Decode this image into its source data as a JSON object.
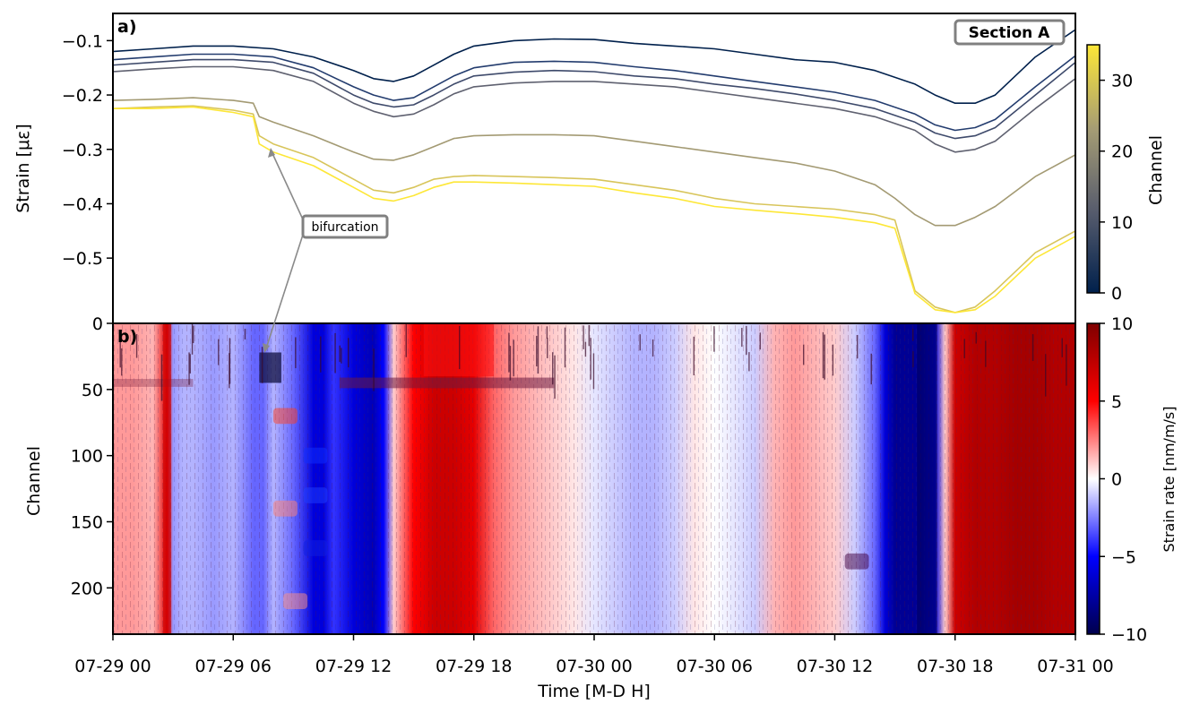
{
  "chart_data": [
    {
      "panel_label": "a)",
      "type": "line",
      "ylabel": "Strain [με]",
      "ylim": [
        -0.62,
        -0.05
      ],
      "yticks": [
        -0.1,
        -0.2,
        -0.3,
        -0.4,
        -0.5
      ],
      "ytick_labels": [
        "−0.1",
        "−0.2",
        "−0.3",
        "−0.4",
        "−0.5"
      ],
      "x_unit": "hours since 07-29 00",
      "xlim": [
        0,
        48
      ],
      "badge": "Section A",
      "annotation": "bifurcation",
      "colorbar": {
        "label": "Channel",
        "range": [
          0,
          35
        ],
        "ticks": [
          0,
          10,
          20,
          30
        ],
        "tick_labels": [
          "0",
          "10",
          "20",
          "30"
        ],
        "colors": [
          "#00204c",
          "#575c6d",
          "#a59c74",
          "#fde737"
        ]
      },
      "series": [
        {
          "channel": 0,
          "color": "#00204c",
          "x": [
            0,
            2,
            4,
            6,
            8,
            10,
            12,
            13,
            14,
            15,
            16,
            17,
            18,
            20,
            22,
            24,
            26,
            28,
            30,
            32,
            34,
            36,
            38,
            40,
            41,
            42,
            43,
            44,
            46,
            48
          ],
          "y": [
            -0.12,
            -0.115,
            -0.11,
            -0.11,
            -0.115,
            -0.13,
            -0.155,
            -0.17,
            -0.175,
            -0.165,
            -0.145,
            -0.125,
            -0.11,
            -0.1,
            -0.097,
            -0.098,
            -0.105,
            -0.11,
            -0.115,
            -0.125,
            -0.135,
            -0.14,
            -0.155,
            -0.18,
            -0.2,
            -0.215,
            -0.215,
            -0.2,
            -0.13,
            -0.08
          ]
        },
        {
          "channel": 4,
          "color": "#233c6e",
          "x": [
            0,
            2,
            4,
            6,
            8,
            10,
            12,
            13,
            14,
            15,
            16,
            17,
            18,
            20,
            22,
            24,
            26,
            28,
            30,
            32,
            34,
            36,
            38,
            40,
            41,
            42,
            43,
            44,
            46,
            48
          ],
          "y": [
            -0.135,
            -0.13,
            -0.125,
            -0.125,
            -0.13,
            -0.15,
            -0.185,
            -0.2,
            -0.21,
            -0.205,
            -0.185,
            -0.165,
            -0.15,
            -0.14,
            -0.138,
            -0.14,
            -0.148,
            -0.155,
            -0.165,
            -0.175,
            -0.185,
            -0.195,
            -0.21,
            -0.235,
            -0.255,
            -0.265,
            -0.26,
            -0.245,
            -0.185,
            -0.128
          ]
        },
        {
          "channel": 8,
          "color": "#3e4a6b",
          "x": [
            0,
            2,
            4,
            6,
            8,
            10,
            12,
            13,
            14,
            15,
            16,
            17,
            18,
            20,
            22,
            24,
            26,
            28,
            30,
            32,
            34,
            36,
            38,
            40,
            41,
            42,
            43,
            44,
            46,
            48
          ],
          "y": [
            -0.145,
            -0.14,
            -0.135,
            -0.135,
            -0.14,
            -0.16,
            -0.2,
            -0.215,
            -0.222,
            -0.218,
            -0.2,
            -0.18,
            -0.165,
            -0.158,
            -0.155,
            -0.157,
            -0.165,
            -0.17,
            -0.18,
            -0.188,
            -0.198,
            -0.21,
            -0.225,
            -0.25,
            -0.27,
            -0.28,
            -0.275,
            -0.26,
            -0.2,
            -0.14
          ]
        },
        {
          "channel": 12,
          "color": "#5f6170",
          "x": [
            0,
            2,
            4,
            6,
            8,
            10,
            12,
            13,
            14,
            15,
            16,
            17,
            18,
            20,
            22,
            24,
            26,
            28,
            30,
            32,
            34,
            36,
            38,
            40,
            41,
            42,
            43,
            44,
            46,
            48
          ],
          "y": [
            -0.157,
            -0.152,
            -0.148,
            -0.148,
            -0.155,
            -0.175,
            -0.215,
            -0.23,
            -0.24,
            -0.235,
            -0.218,
            -0.198,
            -0.185,
            -0.178,
            -0.175,
            -0.175,
            -0.18,
            -0.185,
            -0.195,
            -0.205,
            -0.215,
            -0.225,
            -0.24,
            -0.265,
            -0.29,
            -0.305,
            -0.3,
            -0.285,
            -0.225,
            -0.17
          ]
        },
        {
          "channel": 22,
          "color": "#a39a73",
          "x": [
            0,
            2,
            4,
            6,
            7,
            7.3,
            8,
            10,
            12,
            13,
            14,
            15,
            16,
            17,
            18,
            20,
            22,
            24,
            26,
            28,
            30,
            32,
            34,
            36,
            38,
            39,
            40,
            41,
            42,
            43,
            44,
            46,
            48
          ],
          "y": [
            -0.21,
            -0.208,
            -0.205,
            -0.21,
            -0.215,
            -0.24,
            -0.25,
            -0.275,
            -0.305,
            -0.318,
            -0.32,
            -0.31,
            -0.295,
            -0.28,
            -0.275,
            -0.273,
            -0.273,
            -0.275,
            -0.285,
            -0.295,
            -0.305,
            -0.315,
            -0.325,
            -0.34,
            -0.365,
            -0.39,
            -0.42,
            -0.44,
            -0.44,
            -0.425,
            -0.405,
            -0.35,
            -0.31
          ]
        },
        {
          "channel": 30,
          "color": "#d8c55b",
          "x": [
            0,
            2,
            4,
            6,
            7,
            7.3,
            8,
            10,
            12,
            13,
            14,
            15,
            16,
            17,
            18,
            20,
            22,
            24,
            26,
            28,
            30,
            32,
            34,
            36,
            38,
            39,
            40,
            41,
            42,
            43,
            44,
            46,
            48
          ],
          "y": [
            -0.225,
            -0.222,
            -0.22,
            -0.228,
            -0.235,
            -0.275,
            -0.29,
            -0.315,
            -0.355,
            -0.375,
            -0.38,
            -0.37,
            -0.355,
            -0.35,
            -0.348,
            -0.35,
            -0.352,
            -0.355,
            -0.365,
            -0.375,
            -0.39,
            -0.4,
            -0.405,
            -0.41,
            -0.42,
            -0.43,
            -0.56,
            -0.59,
            -0.6,
            -0.59,
            -0.56,
            -0.49,
            -0.45
          ]
        },
        {
          "channel": 35,
          "color": "#fde737",
          "x": [
            0,
            2,
            4,
            6,
            7,
            7.3,
            8,
            10,
            12,
            13,
            14,
            15,
            16,
            17,
            18,
            20,
            22,
            24,
            26,
            28,
            30,
            32,
            34,
            36,
            38,
            39,
            40,
            41,
            42,
            43,
            44,
            46,
            48
          ],
          "y": [
            -0.225,
            -0.225,
            -0.222,
            -0.232,
            -0.24,
            -0.29,
            -0.305,
            -0.33,
            -0.37,
            -0.39,
            -0.395,
            -0.385,
            -0.37,
            -0.36,
            -0.36,
            -0.362,
            -0.365,
            -0.368,
            -0.38,
            -0.39,
            -0.405,
            -0.412,
            -0.418,
            -0.425,
            -0.435,
            -0.445,
            -0.565,
            -0.595,
            -0.6,
            -0.595,
            -0.57,
            -0.5,
            -0.46
          ]
        }
      ]
    },
    {
      "panel_label": "b)",
      "type": "heatmap",
      "ylabel": "Channel",
      "xlabel": "Time [M-D H]",
      "ylim": [
        235,
        0
      ],
      "yticks": [
        0,
        50,
        100,
        150,
        200
      ],
      "ytick_labels": [
        "0",
        "50",
        "100",
        "150",
        "200"
      ],
      "x_unit": "hours since 07-29 00",
      "xlim": [
        0,
        48
      ],
      "xticks": [
        0,
        6,
        12,
        18,
        24,
        30,
        36,
        42,
        48
      ],
      "xtick_labels": [
        "07-29 00",
        "07-29 06",
        "07-29 12",
        "07-29 18",
        "07-30 00",
        "07-30 06",
        "07-30 12",
        "07-30 18",
        "07-31 00"
      ],
      "colorbar": {
        "label": "Strain rate [nm/m/s]",
        "range": [
          -10,
          10
        ],
        "ticks": [
          10,
          5,
          0,
          -5,
          -10
        ],
        "tick_labels": [
          "10",
          "5",
          "0",
          "−5",
          "−10"
        ]
      },
      "time_hours": [
        0,
        1,
        2,
        2.7,
        3,
        3.5,
        4,
        5,
        6,
        7,
        7.5,
        8,
        9,
        10,
        10.5,
        11,
        12,
        13,
        13.5,
        14,
        15,
        16,
        17,
        18,
        19,
        20,
        21,
        22,
        23,
        24,
        25,
        26,
        27,
        28,
        29,
        30,
        31,
        32,
        33,
        34,
        35,
        36,
        37,
        38,
        38.5,
        39,
        40,
        41,
        41.5,
        42,
        43,
        44,
        45,
        46,
        47,
        48
      ],
      "mean_rate_nm_m_s": [
        2,
        2,
        1.5,
        6,
        -2,
        -1.5,
        -1.5,
        -2,
        -1.5,
        -3,
        -3,
        -1.5,
        -3,
        -6,
        -6,
        -4,
        -6,
        -7,
        -5,
        1,
        5,
        7,
        7,
        6,
        3,
        2,
        1.5,
        1,
        0.5,
        -0.5,
        -1,
        -1.5,
        -1.5,
        -1,
        0.5,
        0,
        -0.5,
        -1,
        1.5,
        2,
        1.5,
        1,
        -1,
        -3,
        -6,
        -8,
        -8,
        -6,
        1,
        7,
        8,
        8,
        8.5,
        8.5,
        8,
        8
      ]
    }
  ]
}
